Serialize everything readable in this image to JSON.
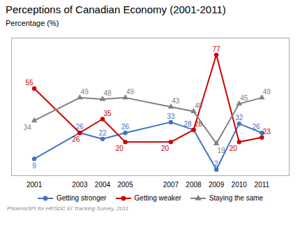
{
  "chart_data": {
    "type": "line",
    "title": "Perceptions of Canadian Economy (2001-2011)",
    "ylabel": "Percentage (%)",
    "caption": "PhoenixSPI for HRSDC EI Tracking Survey, 2011",
    "x": [
      2001,
      2003,
      2004,
      2005,
      2007,
      2008,
      2009,
      2010,
      2011
    ],
    "series": [
      {
        "name": "Getting stronger",
        "color": "#4472c4",
        "marker": "circle",
        "values": [
          9,
          26,
          22,
          26,
          33,
          28,
          2,
          32,
          26
        ]
      },
      {
        "name": "Getting weaker",
        "color": "#cc0000",
        "marker": "circle",
        "values": [
          55,
          26,
          35,
          20,
          20,
          28,
          77,
          20,
          23
        ]
      },
      {
        "name": "Staying the same",
        "color": "#808080",
        "marker": "triangle",
        "values": [
          34,
          49,
          48,
          49,
          43,
          40,
          19,
          45,
          49
        ]
      }
    ],
    "xlim": [
      2000.0,
      2012.2
    ],
    "xticks": [
      2001,
      2003,
      2004,
      2005,
      2007,
      2008,
      2009,
      2010,
      2011
    ],
    "ylim": [
      -2,
      88
    ],
    "tick_labels": "x",
    "data_labels": true,
    "legend": "bottom",
    "grid": false
  }
}
